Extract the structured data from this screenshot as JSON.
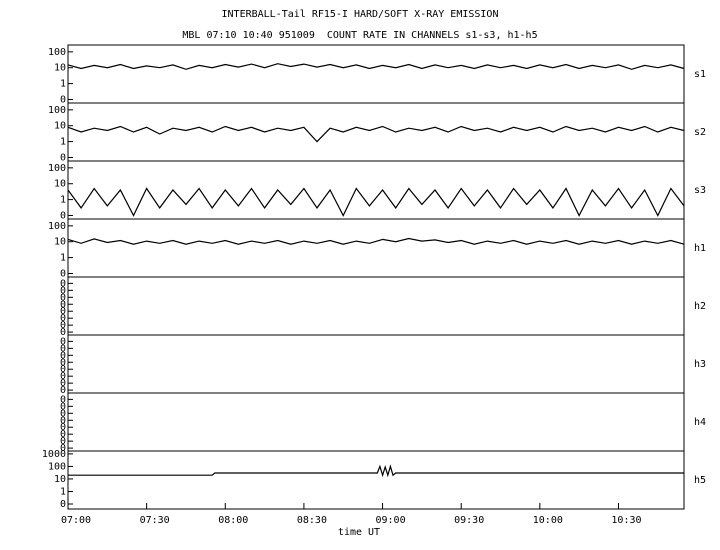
{
  "chart_data": [
    {
      "type": "line",
      "title": "INTERBALL-Tail RF15-I HARD/SOFT X-RAY EMISSION",
      "subtitle": "MBL 07:10 10:40 951009  COUNT RATE IN CHANNELS s1-s3, h1-h5",
      "label": "s1",
      "log_y": true,
      "color": "#000000",
      "xlim": [
        420,
        655
      ],
      "ylim": [
        0.06,
        270
      ],
      "yticks": [
        100,
        10,
        1,
        {
          "value": 0.1,
          "label": "0"
        }
      ],
      "x": [
        420,
        425,
        430,
        435,
        440,
        445,
        450,
        455,
        460,
        465,
        470,
        475,
        480,
        485,
        490,
        495,
        500,
        505,
        510,
        515,
        520,
        525,
        530,
        535,
        540,
        545,
        550,
        555,
        560,
        565,
        570,
        575,
        580,
        585,
        590,
        595,
        600,
        605,
        610,
        615,
        620,
        625,
        630,
        635,
        640,
        645,
        650,
        655
      ],
      "values": [
        15,
        9,
        14,
        10,
        16,
        9,
        13,
        10,
        15,
        8,
        14,
        10,
        16,
        11,
        17,
        10,
        18,
        12,
        17,
        11,
        16,
        10,
        15,
        9,
        14,
        10,
        16,
        9,
        15,
        10,
        14,
        9,
        15,
        10,
        14,
        9,
        15,
        10,
        16,
        9,
        14,
        10,
        15,
        8,
        14,
        10,
        15,
        9
      ]
    },
    {
      "type": "line",
      "label": "s2",
      "log_y": true,
      "color": "#000000",
      "xlim": [
        420,
        655
      ],
      "ylim": [
        0.06,
        270
      ],
      "yticks": [
        100,
        10,
        1,
        {
          "value": 0.1,
          "label": "0"
        }
      ],
      "x": [
        420,
        425,
        430,
        435,
        440,
        445,
        450,
        455,
        460,
        465,
        470,
        475,
        480,
        485,
        490,
        495,
        500,
        505,
        510,
        515,
        520,
        525,
        530,
        535,
        540,
        545,
        550,
        555,
        560,
        565,
        570,
        575,
        580,
        585,
        590,
        595,
        600,
        605,
        610,
        615,
        620,
        625,
        630,
        635,
        640,
        645,
        650,
        655
      ],
      "values": [
        8,
        4,
        7,
        5,
        9,
        4,
        8,
        3,
        7,
        5,
        8,
        4,
        9,
        5,
        8,
        4,
        7,
        5,
        8,
        1,
        7,
        4,
        8,
        5,
        9,
        4,
        7,
        5,
        8,
        4,
        9,
        5,
        7,
        4,
        8,
        5,
        8,
        4,
        9,
        5,
        7,
        4,
        8,
        5,
        9,
        4,
        8,
        5
      ]
    },
    {
      "type": "line",
      "label": "s3",
      "log_y": true,
      "color": "#000000",
      "xlim": [
        420,
        655
      ],
      "ylim": [
        0.06,
        270
      ],
      "yticks": [
        100,
        10,
        1,
        {
          "value": 0.1,
          "label": "0"
        }
      ],
      "x": [
        420,
        425,
        430,
        435,
        440,
        445,
        450,
        455,
        460,
        465,
        470,
        475,
        480,
        485,
        490,
        495,
        500,
        505,
        510,
        515,
        520,
        525,
        530,
        535,
        540,
        545,
        550,
        555,
        560,
        565,
        570,
        575,
        580,
        585,
        590,
        595,
        600,
        605,
        610,
        615,
        620,
        625,
        630,
        635,
        640,
        645,
        650,
        655
      ],
      "values": [
        4,
        0.3,
        5,
        0.4,
        4,
        0.1,
        5,
        0.3,
        4,
        0.5,
        5,
        0.3,
        4,
        0.4,
        5,
        0.3,
        4,
        0.5,
        5,
        0.3,
        4,
        0.1,
        5,
        0.4,
        4,
        0.3,
        5,
        0.5,
        4,
        0.3,
        5,
        0.4,
        4,
        0.3,
        5,
        0.5,
        4,
        0.3,
        5,
        0.1,
        4,
        0.4,
        5,
        0.3,
        4,
        0.1,
        5,
        0.4
      ]
    },
    {
      "type": "line",
      "label": "h1",
      "log_y": true,
      "color": "#000000",
      "xlim": [
        420,
        655
      ],
      "ylim": [
        0.06,
        270
      ],
      "yticks": [
        100,
        10,
        1,
        {
          "value": 0.1,
          "label": "0"
        }
      ],
      "x": [
        420,
        425,
        430,
        435,
        440,
        445,
        450,
        455,
        460,
        465,
        470,
        475,
        480,
        485,
        490,
        495,
        500,
        505,
        510,
        515,
        520,
        525,
        530,
        535,
        540,
        545,
        550,
        555,
        560,
        565,
        570,
        575,
        580,
        585,
        590,
        595,
        600,
        605,
        610,
        615,
        620,
        625,
        630,
        635,
        640,
        645,
        650,
        655
      ],
      "values": [
        14,
        8,
        15,
        9,
        12,
        7,
        11,
        8,
        12,
        7,
        11,
        8,
        12,
        7,
        11,
        8,
        12,
        7,
        11,
        8,
        12,
        7,
        11,
        8,
        14,
        10,
        16,
        11,
        13,
        9,
        12,
        7,
        11,
        8,
        12,
        7,
        11,
        8,
        12,
        7,
        11,
        8,
        12,
        7,
        11,
        8,
        12,
        7
      ]
    },
    {
      "type": "line",
      "label": "h2",
      "log_y": false,
      "xlim": [
        420,
        655
      ],
      "ylim": [
        0,
        1
      ],
      "yticks": [
        {
          "value": 0.05,
          "label": "0"
        },
        {
          "value": 0.17,
          "label": "0"
        },
        {
          "value": 0.29,
          "label": "0"
        },
        {
          "value": 0.41,
          "label": "0"
        },
        {
          "value": 0.53,
          "label": "0"
        },
        {
          "value": 0.65,
          "label": "0"
        },
        {
          "value": 0.77,
          "label": "0"
        },
        {
          "value": 0.89,
          "label": "0"
        }
      ]
    },
    {
      "type": "line",
      "label": "h3",
      "log_y": false,
      "xlim": [
        420,
        655
      ],
      "ylim": [
        0,
        1
      ],
      "yticks": [
        {
          "value": 0.05,
          "label": "0"
        },
        {
          "value": 0.17,
          "label": "0"
        },
        {
          "value": 0.29,
          "label": "0"
        },
        {
          "value": 0.41,
          "label": "0"
        },
        {
          "value": 0.53,
          "label": "0"
        },
        {
          "value": 0.65,
          "label": "0"
        },
        {
          "value": 0.77,
          "label": "0"
        },
        {
          "value": 0.89,
          "label": "0"
        }
      ]
    },
    {
      "type": "line",
      "label": "h4",
      "log_y": false,
      "xlim": [
        420,
        655
      ],
      "ylim": [
        0,
        1
      ],
      "yticks": [
        {
          "value": 0.05,
          "label": "0"
        },
        {
          "value": 0.17,
          "label": "0"
        },
        {
          "value": 0.29,
          "label": "0"
        },
        {
          "value": 0.41,
          "label": "0"
        },
        {
          "value": 0.53,
          "label": "0"
        },
        {
          "value": 0.65,
          "label": "0"
        },
        {
          "value": 0.77,
          "label": "0"
        },
        {
          "value": 0.89,
          "label": "0"
        }
      ]
    },
    {
      "type": "line",
      "label": "h5",
      "log_y": true,
      "color": "#000000",
      "xlim": [
        420,
        655
      ],
      "ylim": [
        0.04,
        1700
      ],
      "yticks": [
        1000,
        100,
        10,
        1,
        {
          "value": 0.1,
          "label": "0"
        }
      ],
      "x": [
        420,
        475,
        476,
        538,
        539,
        540,
        541,
        542,
        543,
        544,
        545,
        655
      ],
      "values": [
        20,
        20,
        30,
        30,
        100,
        20,
        90,
        20,
        100,
        20,
        30,
        30
      ],
      "xlabel": "time UT",
      "xticks": [
        {
          "value": 420,
          "label": "07:00"
        },
        {
          "value": 450,
          "label": "07:30"
        },
        {
          "value": 480,
          "label": "08:00"
        },
        {
          "value": 510,
          "label": "08:30"
        },
        {
          "value": 540,
          "label": "09:00"
        },
        {
          "value": 570,
          "label": "09:30"
        },
        {
          "value": 600,
          "label": "10:00"
        },
        {
          "value": 630,
          "label": "10:30"
        }
      ]
    }
  ]
}
